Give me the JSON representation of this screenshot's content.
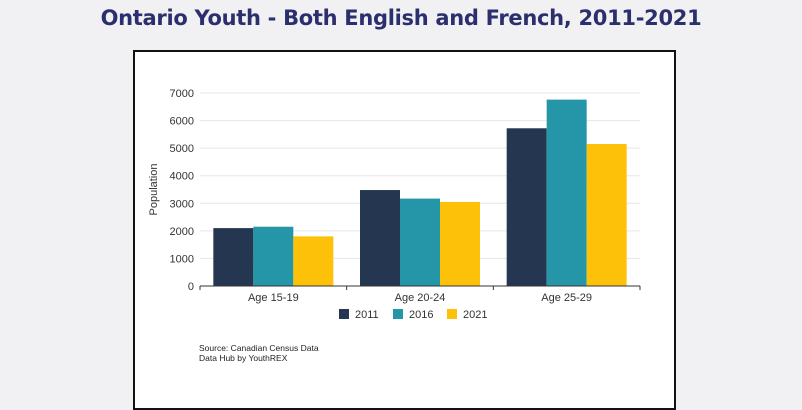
{
  "page": {
    "title": "Ontario Youth - Both English and French, 2011-2021"
  },
  "colors": {
    "2011": "#243650",
    "2016": "#2595a8",
    "2021": "#fdc10a",
    "title": "#2b2f6e"
  },
  "source": {
    "line1": "Source: Canadian Census Data",
    "line2": "Data Hub by YouthREX"
  },
  "chart_data": {
    "type": "bar",
    "title": "Ontario Youth - Both English and French, 2011-2021",
    "xlabel": "",
    "ylabel": "Population",
    "categories": [
      "Age 15-19",
      "Age 20-24",
      "Age 25-29"
    ],
    "series": [
      {
        "name": "2011",
        "values": [
          2100,
          3480,
          5720
        ]
      },
      {
        "name": "2016",
        "values": [
          2150,
          3170,
          6760
        ]
      },
      {
        "name": "2021",
        "values": [
          1800,
          3050,
          5150
        ]
      }
    ],
    "ylim": [
      0,
      7000
    ],
    "yticks": [
      "0",
      "1000",
      "2000",
      "3000",
      "4000",
      "5000",
      "6000",
      "7000"
    ],
    "grid": true,
    "legend_position": "bottom"
  }
}
